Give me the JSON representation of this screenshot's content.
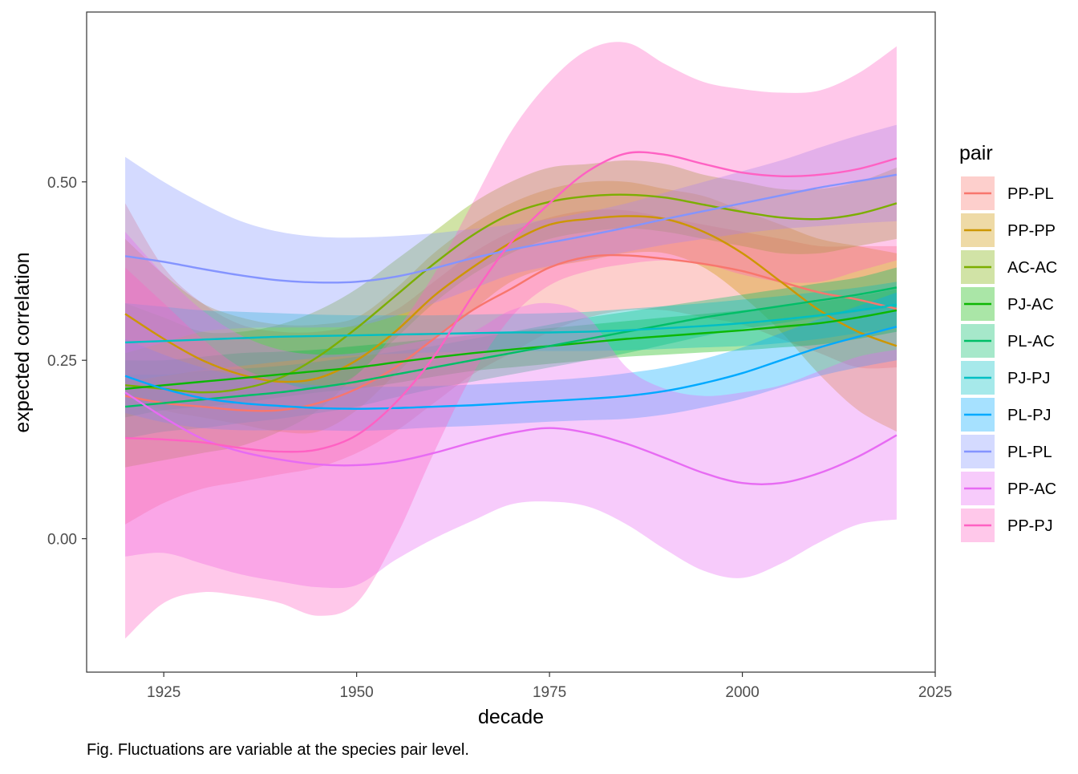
{
  "chart_data": {
    "type": "line",
    "xlabel": "decade",
    "ylabel": "expected correlation",
    "caption": "Fig. Fluctuations are variable at the species pair level.",
    "legend_title": "pair",
    "legend_position": "right",
    "grid": false,
    "xlim": [
      1915,
      2025
    ],
    "ylim": [
      -0.187,
      0.738
    ],
    "x_ticks": [
      1925,
      1950,
      1975,
      2000,
      2025
    ],
    "x_tick_labels": [
      "1925",
      "1950",
      "1975",
      "2000",
      "2025"
    ],
    "y_ticks": [
      0,
      0.25,
      0.5
    ],
    "y_tick_labels": [
      "0.00",
      "0.25",
      "0.50"
    ],
    "x": [
      1920,
      1925,
      1930,
      1935,
      1940,
      1945,
      1950,
      1955,
      1960,
      1965,
      1970,
      1975,
      1980,
      1985,
      1990,
      1995,
      2000,
      2005,
      2010,
      2015,
      2020
    ],
    "series": [
      {
        "name": "PP-PL",
        "color": "#F8766D",
        "values": [
          0.2,
          0.19,
          0.185,
          0.18,
          0.18,
          0.19,
          0.21,
          0.24,
          0.28,
          0.32,
          0.35,
          0.38,
          0.395,
          0.397,
          0.392,
          0.385,
          0.375,
          0.36,
          0.345,
          0.335,
          0.322
        ],
        "upper": [
          0.47,
          0.38,
          0.33,
          0.3,
          0.29,
          0.29,
          0.3,
          0.32,
          0.36,
          0.4,
          0.43,
          0.45,
          0.46,
          0.46,
          0.45,
          0.44,
          0.43,
          0.42,
          0.41,
          0.41,
          0.41
        ],
        "lower": [
          0.02,
          0.05,
          0.07,
          0.08,
          0.09,
          0.1,
          0.12,
          0.15,
          0.19,
          0.23,
          0.26,
          0.29,
          0.31,
          0.32,
          0.32,
          0.31,
          0.3,
          0.28,
          0.26,
          0.24,
          0.24
        ]
      },
      {
        "name": "PP-PP",
        "color": "#CD9600",
        "values": [
          0.315,
          0.28,
          0.25,
          0.23,
          0.22,
          0.225,
          0.25,
          0.29,
          0.34,
          0.38,
          0.415,
          0.44,
          0.448,
          0.452,
          0.448,
          0.43,
          0.4,
          0.36,
          0.32,
          0.29,
          0.27
        ],
        "upper": [
          0.42,
          0.37,
          0.33,
          0.31,
          0.3,
          0.3,
          0.31,
          0.35,
          0.4,
          0.44,
          0.47,
          0.49,
          0.5,
          0.5,
          0.49,
          0.48,
          0.46,
          0.44,
          0.42,
          0.41,
          0.4
        ],
        "lower": [
          0.2,
          0.18,
          0.17,
          0.16,
          0.15,
          0.15,
          0.18,
          0.23,
          0.28,
          0.32,
          0.36,
          0.38,
          0.39,
          0.4,
          0.4,
          0.38,
          0.34,
          0.29,
          0.23,
          0.18,
          0.15
        ]
      },
      {
        "name": "AC-AC",
        "color": "#7CAE00",
        "values": [
          0.215,
          0.21,
          0.205,
          0.21,
          0.225,
          0.255,
          0.295,
          0.34,
          0.385,
          0.425,
          0.455,
          0.472,
          0.48,
          0.482,
          0.478,
          0.468,
          0.458,
          0.45,
          0.448,
          0.455,
          0.47
        ],
        "upper": [
          0.33,
          0.31,
          0.29,
          0.29,
          0.3,
          0.32,
          0.35,
          0.39,
          0.43,
          0.47,
          0.5,
          0.52,
          0.525,
          0.53,
          0.525,
          0.51,
          0.5,
          0.49,
          0.49,
          0.5,
          0.52
        ],
        "lower": [
          0.1,
          0.11,
          0.12,
          0.13,
          0.15,
          0.18,
          0.23,
          0.28,
          0.33,
          0.37,
          0.4,
          0.42,
          0.43,
          0.435,
          0.43,
          0.42,
          0.41,
          0.4,
          0.4,
          0.41,
          0.42
        ]
      },
      {
        "name": "PJ-AC",
        "color": "#0CB702",
        "values": [
          0.21,
          0.215,
          0.22,
          0.225,
          0.23,
          0.235,
          0.24,
          0.247,
          0.254,
          0.26,
          0.265,
          0.27,
          0.275,
          0.28,
          0.284,
          0.288,
          0.292,
          0.297,
          0.302,
          0.31,
          0.32
        ],
        "upper": [
          0.25,
          0.25,
          0.255,
          0.26,
          0.262,
          0.265,
          0.27,
          0.275,
          0.28,
          0.285,
          0.29,
          0.295,
          0.3,
          0.305,
          0.31,
          0.315,
          0.32,
          0.325,
          0.332,
          0.34,
          0.35
        ],
        "lower": [
          0.17,
          0.18,
          0.185,
          0.19,
          0.198,
          0.205,
          0.21,
          0.218,
          0.227,
          0.235,
          0.24,
          0.245,
          0.25,
          0.255,
          0.258,
          0.261,
          0.264,
          0.268,
          0.272,
          0.28,
          0.29
        ]
      },
      {
        "name": "PL-AC",
        "color": "#00BE67",
        "values": [
          0.185,
          0.19,
          0.195,
          0.2,
          0.205,
          0.212,
          0.22,
          0.23,
          0.24,
          0.25,
          0.26,
          0.27,
          0.28,
          0.29,
          0.3,
          0.31,
          0.318,
          0.326,
          0.334,
          0.342,
          0.352
        ],
        "upper": [
          0.23,
          0.23,
          0.235,
          0.238,
          0.242,
          0.248,
          0.255,
          0.262,
          0.27,
          0.28,
          0.29,
          0.3,
          0.31,
          0.318,
          0.326,
          0.334,
          0.342,
          0.35,
          0.358,
          0.366,
          0.38
        ],
        "lower": [
          0.14,
          0.15,
          0.155,
          0.162,
          0.168,
          0.176,
          0.185,
          0.198,
          0.21,
          0.22,
          0.23,
          0.24,
          0.25,
          0.26,
          0.272,
          0.284,
          0.294,
          0.302,
          0.31,
          0.318,
          0.325
        ]
      },
      {
        "name": "PJ-PJ",
        "color": "#00BFC4",
        "values": [
          0.275,
          0.277,
          0.279,
          0.281,
          0.283,
          0.284,
          0.285,
          0.286,
          0.287,
          0.288,
          0.289,
          0.289,
          0.29,
          0.292,
          0.295,
          0.298,
          0.302,
          0.307,
          0.313,
          0.32,
          0.328
        ],
        "upper": [
          0.33,
          0.325,
          0.32,
          0.318,
          0.316,
          0.314,
          0.313,
          0.313,
          0.313,
          0.314,
          0.315,
          0.316,
          0.318,
          0.322,
          0.326,
          0.33,
          0.335,
          0.34,
          0.346,
          0.352,
          0.36
        ],
        "lower": [
          0.22,
          0.228,
          0.236,
          0.242,
          0.248,
          0.253,
          0.257,
          0.259,
          0.261,
          0.262,
          0.263,
          0.263,
          0.263,
          0.264,
          0.266,
          0.268,
          0.27,
          0.274,
          0.28,
          0.288,
          0.296
        ]
      },
      {
        "name": "PL-PJ",
        "color": "#00A9FF",
        "values": [
          0.228,
          0.21,
          0.197,
          0.19,
          0.186,
          0.183,
          0.182,
          0.183,
          0.185,
          0.187,
          0.19,
          0.193,
          0.196,
          0.2,
          0.207,
          0.218,
          0.232,
          0.25,
          0.268,
          0.283,
          0.297
        ],
        "upper": [
          0.28,
          0.258,
          0.24,
          0.228,
          0.22,
          0.215,
          0.213,
          0.213,
          0.214,
          0.216,
          0.219,
          0.222,
          0.226,
          0.232,
          0.24,
          0.252,
          0.268,
          0.288,
          0.308,
          0.326,
          0.345
        ],
        "lower": [
          0.176,
          0.163,
          0.155,
          0.152,
          0.152,
          0.152,
          0.151,
          0.153,
          0.156,
          0.158,
          0.161,
          0.164,
          0.166,
          0.168,
          0.174,
          0.184,
          0.196,
          0.212,
          0.228,
          0.24,
          0.25
        ]
      },
      {
        "name": "PL-PL",
        "color": "#8494FF",
        "values": [
          0.396,
          0.388,
          0.378,
          0.369,
          0.362,
          0.359,
          0.36,
          0.367,
          0.379,
          0.393,
          0.405,
          0.415,
          0.425,
          0.436,
          0.448,
          0.459,
          0.47,
          0.481,
          0.492,
          0.501,
          0.51
        ],
        "upper": [
          0.535,
          0.5,
          0.47,
          0.445,
          0.43,
          0.423,
          0.422,
          0.424,
          0.428,
          0.434,
          0.44,
          0.448,
          0.458,
          0.47,
          0.485,
          0.5,
          0.515,
          0.53,
          0.548,
          0.565,
          0.58
        ],
        "lower": [
          0.26,
          0.275,
          0.29,
          0.295,
          0.296,
          0.296,
          0.298,
          0.312,
          0.33,
          0.35,
          0.37,
          0.382,
          0.392,
          0.402,
          0.412,
          0.42,
          0.428,
          0.434,
          0.438,
          0.442,
          0.445
        ]
      },
      {
        "name": "PP-AC",
        "color": "#E76BF3",
        "values": [
          0.205,
          0.17,
          0.14,
          0.122,
          0.111,
          0.104,
          0.103,
          0.108,
          0.12,
          0.135,
          0.148,
          0.155,
          0.148,
          0.133,
          0.113,
          0.092,
          0.078,
          0.078,
          0.092,
          0.115,
          0.145
        ],
        "upper": [
          0.43,
          0.37,
          0.32,
          0.285,
          0.265,
          0.258,
          0.26,
          0.27,
          0.28,
          0.29,
          0.32,
          0.33,
          0.31,
          0.24,
          0.21,
          0.2,
          0.205,
          0.215,
          0.235,
          0.255,
          0.265
        ],
        "lower": [
          -0.025,
          -0.02,
          -0.035,
          -0.05,
          -0.06,
          -0.068,
          -0.065,
          -0.03,
          0.0,
          0.025,
          0.048,
          0.052,
          0.045,
          0.02,
          -0.015,
          -0.045,
          -0.055,
          -0.035,
          -0.005,
          0.02,
          0.027
        ]
      },
      {
        "name": "PP-PJ",
        "color": "#FF61C3",
        "values": [
          0.141,
          0.139,
          0.135,
          0.127,
          0.122,
          0.125,
          0.145,
          0.19,
          0.255,
          0.34,
          0.415,
          0.47,
          0.515,
          0.54,
          0.538,
          0.525,
          0.513,
          0.508,
          0.51,
          0.518,
          0.533
        ],
        "upper": [
          0.38,
          0.33,
          0.28,
          0.24,
          0.22,
          0.21,
          0.23,
          0.29,
          0.37,
          0.47,
          0.57,
          0.64,
          0.685,
          0.695,
          0.665,
          0.64,
          0.63,
          0.625,
          0.628,
          0.652,
          0.69
        ],
        "lower": [
          -0.14,
          -0.09,
          -0.075,
          -0.08,
          -0.09,
          -0.108,
          -0.09,
          0.0,
          0.12,
          0.23,
          0.31,
          0.355,
          0.375,
          0.385,
          0.39,
          0.385,
          0.37,
          0.36,
          0.36,
          0.375,
          0.39
        ]
      }
    ]
  }
}
